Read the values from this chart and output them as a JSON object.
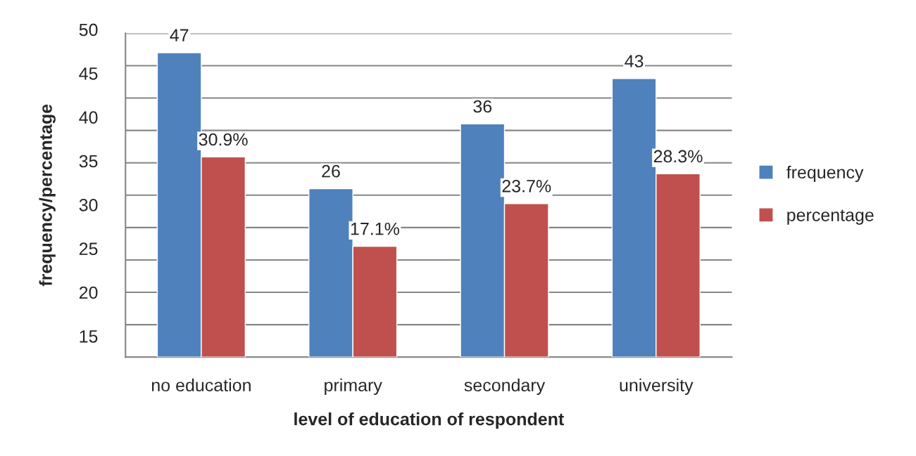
{
  "chart_data": {
    "type": "bar",
    "xlabel": "level of education of respondent",
    "ylabel": "frequency/percentage",
    "categories": [
      "no education",
      "primary",
      "secondary",
      "university"
    ],
    "series": [
      {
        "name": "frequency",
        "color": "#4f81bd",
        "values": [
          47,
          26,
          36,
          43
        ],
        "value_labels": [
          "47",
          "26",
          "36",
          "43"
        ]
      },
      {
        "name": "percentage",
        "color": "#c0504d",
        "values": [
          30.9,
          17.1,
          23.7,
          28.3
        ],
        "value_labels": [
          "30.9%",
          "17.1%",
          "23.7%",
          "28.3%"
        ]
      }
    ],
    "ylim": [
      0,
      50
    ],
    "yticks": [
      {
        "value": 0,
        "label": null
      },
      {
        "value": 5,
        "label": null
      },
      {
        "value": 10,
        "label": null
      },
      {
        "value": 15,
        "label": null
      },
      {
        "value": 20,
        "label": null
      },
      {
        "value": 25,
        "label": null
      },
      {
        "value": 30,
        "label": null
      },
      {
        "value": 35,
        "label": null
      },
      {
        "value": 40,
        "label": null
      },
      {
        "value": 45,
        "label": null
      },
      {
        "value": 50,
        "label": null
      }
    ],
    "annotations": [
      "50",
      "45",
      "40",
      "35",
      "30",
      "25",
      "20",
      "15"
    ],
    "grid": "y",
    "legend": "right"
  }
}
